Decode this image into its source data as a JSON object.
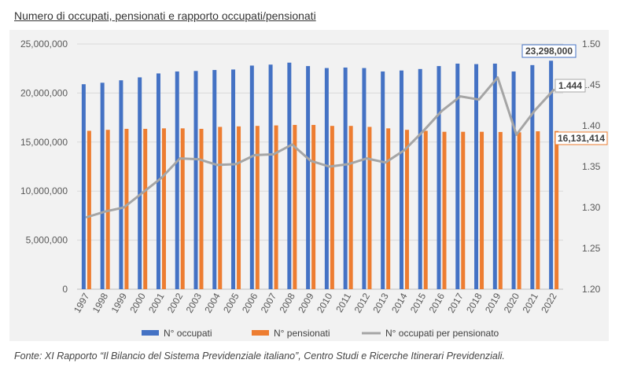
{
  "title": "Numero di occupati, pensionati e rapporto occupati/pensionati",
  "source": "Fonte: XI Rapporto “Il Bilancio del Sistema Previdenziale italiano”, Centro Studi e Ricerche Itinerari Previdenziali.",
  "colors": {
    "occupati": "#4472C4",
    "pensionati": "#ED7D31",
    "rapporto": "#A5A5A5",
    "background": "#F2F2F2"
  },
  "chart_data": {
    "type": "bar",
    "categories": [
      "1997",
      "1998",
      "1999",
      "2000",
      "2001",
      "2002",
      "2003",
      "2004",
      "2005",
      "2006",
      "2007",
      "2008",
      "2009",
      "2010",
      "2011",
      "2012",
      "2013",
      "2014",
      "2015",
      "2016",
      "2017",
      "2018",
      "2019",
      "2020",
      "2021",
      "2022"
    ],
    "series": [
      {
        "name": "N° occupati",
        "type": "bar",
        "axis": "left",
        "values": [
          20900000,
          21050000,
          21300000,
          21600000,
          22000000,
          22200000,
          22250000,
          22350000,
          22400000,
          22800000,
          22900000,
          23100000,
          22750000,
          22550000,
          22600000,
          22550000,
          22200000,
          22300000,
          22450000,
          22750000,
          23000000,
          22950000,
          23000000,
          22200000,
          22850000,
          23298000
        ]
      },
      {
        "name": "N° pensionati",
        "type": "bar",
        "axis": "left",
        "values": [
          16150000,
          16250000,
          16350000,
          16350000,
          16400000,
          16400000,
          16350000,
          16550000,
          16600000,
          16650000,
          16700000,
          16750000,
          16750000,
          16650000,
          16650000,
          16550000,
          16400000,
          16250000,
          16150000,
          16050000,
          16050000,
          16050000,
          16030000,
          16000000,
          16100000,
          16131414
        ]
      },
      {
        "name": "N° occupati per pensionato",
        "type": "line",
        "axis": "right",
        "values": [
          1.288,
          1.295,
          1.3,
          1.318,
          1.336,
          1.36,
          1.359,
          1.352,
          1.353,
          1.364,
          1.365,
          1.377,
          1.357,
          1.35,
          1.353,
          1.36,
          1.355,
          1.37,
          1.393,
          1.418,
          1.436,
          1.432,
          1.459,
          1.389,
          1.419,
          1.444
        ]
      }
    ],
    "y_left": {
      "min": 0,
      "max": 25000000,
      "ticks": [
        "0",
        "5,000,000",
        "10,000,000",
        "15,000,000",
        "20,000,000",
        "25,000,000"
      ]
    },
    "y_right": {
      "min": 1.2,
      "max": 1.5,
      "ticks": [
        "1.20",
        "1.25",
        "1.30",
        "1.35",
        "1.40",
        "1.45",
        "1.50"
      ]
    },
    "annotations": [
      {
        "series": "N° occupati",
        "index": 25,
        "text": "23,298,000"
      },
      {
        "series": "N° occupati per pensionato",
        "index": 25,
        "text": "1.444"
      },
      {
        "series": "N° pensionati",
        "index": 25,
        "text": "16,131,414"
      }
    ],
    "legend": {
      "position": "bottom",
      "labels": [
        "N° occupati",
        "N° pensionati",
        "N° occupati per pensionato"
      ]
    },
    "grid": true
  }
}
